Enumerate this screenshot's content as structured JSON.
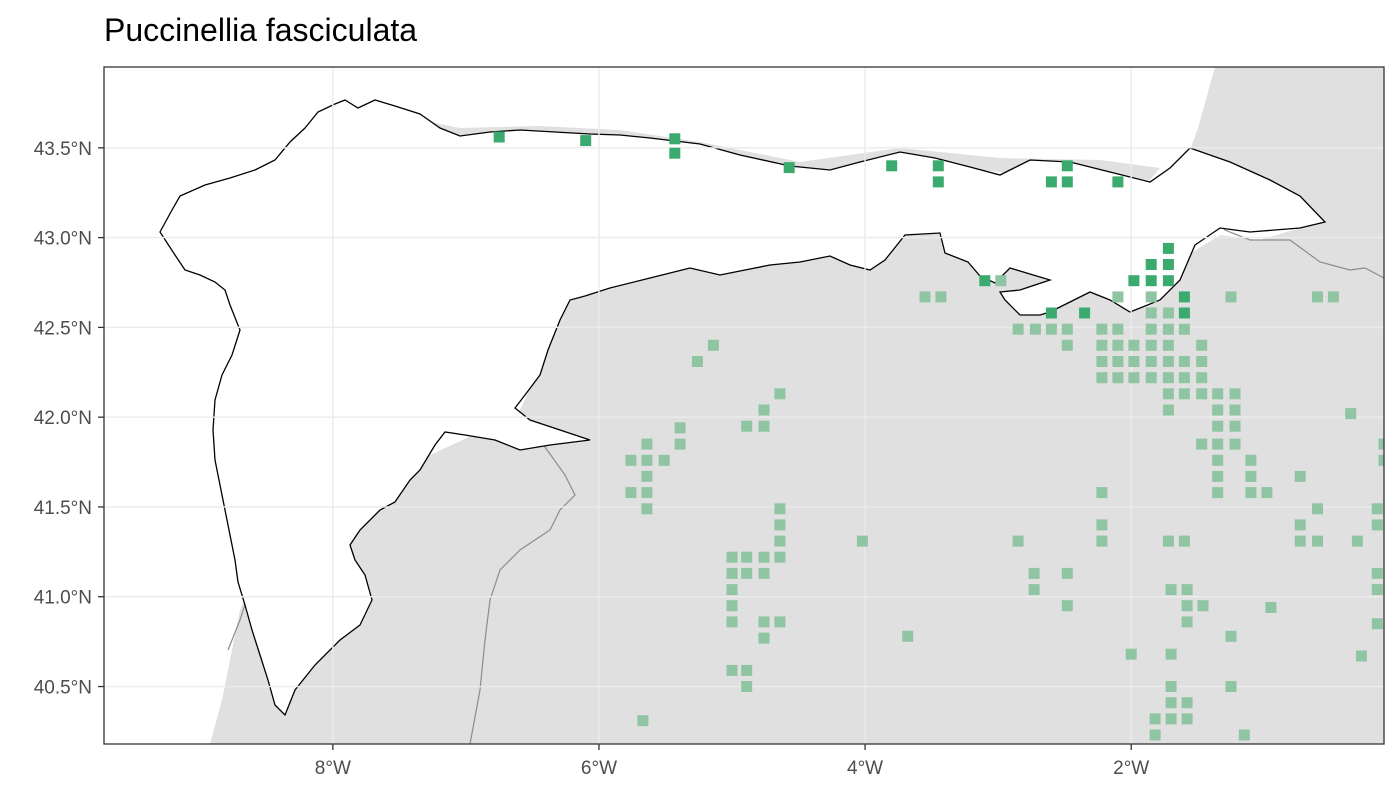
{
  "map": {
    "title": "Puccinellia fasciculata",
    "x_ticks": [
      {
        "value": -8,
        "label": "8°W"
      },
      {
        "value": -6,
        "label": "6°W"
      },
      {
        "value": -4,
        "label": "4°W"
      },
      {
        "value": -2,
        "label": "2°W"
      }
    ],
    "y_ticks": [
      {
        "value": 43.5,
        "label": "43.5°N"
      },
      {
        "value": 43.0,
        "label": "43.0°N"
      },
      {
        "value": 42.5,
        "label": "42.5°N"
      },
      {
        "value": 42.0,
        "label": "42.0°N"
      },
      {
        "value": 41.5,
        "label": "41.5°N"
      },
      {
        "value": 41.0,
        "label": "41.0°N"
      },
      {
        "value": 40.5,
        "label": "40.5°N"
      }
    ],
    "lon_range": [
      -9.72,
      -0.1
    ],
    "lat_range": [
      40.18,
      43.95
    ],
    "grid": true,
    "colors": {
      "study_area_fill": "#ffffff",
      "land_fill": "#e0e0e0",
      "grid": "#ebebeb",
      "border": "#333333",
      "record_inside": "#3aaa6e",
      "record_outside": "#8fc5a2"
    }
  },
  "chart_data": {
    "type": "scatter",
    "title": "Puccinellia fasciculata",
    "xlabel": "",
    "ylabel": "",
    "xlim": [
      -9.72,
      -0.1
    ],
    "ylim": [
      40.18,
      43.95
    ],
    "series": [
      {
        "points": [
          [
            -6.75,
            43.56
          ],
          [
            -6.1,
            43.54
          ],
          [
            -5.43,
            43.55
          ],
          [
            -5.43,
            43.47
          ],
          [
            -4.57,
            43.39
          ],
          [
            -3.8,
            43.4
          ],
          [
            -3.45,
            43.4
          ],
          [
            -3.45,
            43.31
          ],
          [
            -2.6,
            43.31
          ],
          [
            -2.48,
            43.4
          ],
          [
            -2.48,
            43.31
          ],
          [
            -2.1,
            43.31
          ],
          [
            -1.72,
            42.94
          ],
          [
            -1.72,
            42.85
          ],
          [
            -1.72,
            42.76
          ],
          [
            -1.85,
            42.85
          ],
          [
            -1.98,
            42.76
          ],
          [
            -1.85,
            42.76
          ],
          [
            -1.6,
            42.67
          ],
          [
            -1.6,
            42.58
          ],
          [
            -2.6,
            42.58
          ],
          [
            -2.35,
            42.58
          ],
          [
            -3.1,
            42.76
          ]
        ]
      },
      {
        "points": [
          [
            -3.55,
            42.67
          ],
          [
            -3.43,
            42.67
          ],
          [
            -2.98,
            42.76
          ],
          [
            -2.1,
            42.67
          ],
          [
            -1.85,
            42.67
          ],
          [
            -1.25,
            42.67
          ],
          [
            -2.85,
            42.49
          ],
          [
            -2.72,
            42.49
          ],
          [
            -2.6,
            42.49
          ],
          [
            -2.48,
            42.49
          ],
          [
            -2.48,
            42.4
          ],
          [
            -2.22,
            42.49
          ],
          [
            -2.1,
            42.49
          ],
          [
            -1.85,
            42.49
          ],
          [
            -1.72,
            42.49
          ],
          [
            -1.6,
            42.49
          ],
          [
            -1.85,
            42.58
          ],
          [
            -1.72,
            42.58
          ],
          [
            -2.22,
            42.4
          ],
          [
            -2.1,
            42.4
          ],
          [
            -1.98,
            42.4
          ],
          [
            -1.85,
            42.4
          ],
          [
            -1.72,
            42.4
          ],
          [
            -1.47,
            42.4
          ],
          [
            -2.22,
            42.31
          ],
          [
            -2.1,
            42.31
          ],
          [
            -1.98,
            42.31
          ],
          [
            -1.85,
            42.31
          ],
          [
            -1.72,
            42.31
          ],
          [
            -1.6,
            42.31
          ],
          [
            -1.47,
            42.31
          ],
          [
            -2.22,
            42.22
          ],
          [
            -2.1,
            42.22
          ],
          [
            -1.98,
            42.22
          ],
          [
            -1.85,
            42.22
          ],
          [
            -1.72,
            42.22
          ],
          [
            -1.6,
            42.22
          ],
          [
            -1.47,
            42.22
          ],
          [
            -1.72,
            42.13
          ],
          [
            -1.6,
            42.13
          ],
          [
            -1.47,
            42.13
          ],
          [
            -1.35,
            42.13
          ],
          [
            -1.22,
            42.13
          ],
          [
            -1.72,
            42.04
          ],
          [
            -1.35,
            42.04
          ],
          [
            -1.22,
            42.04
          ],
          [
            -1.35,
            41.95
          ],
          [
            -1.22,
            41.95
          ],
          [
            -1.47,
            41.85
          ],
          [
            -1.35,
            41.85
          ],
          [
            -1.22,
            41.85
          ],
          [
            -1.35,
            41.76
          ],
          [
            -1.35,
            41.67
          ],
          [
            -1.35,
            41.58
          ],
          [
            -1.1,
            41.76
          ],
          [
            -1.1,
            41.67
          ],
          [
            -1.1,
            41.58
          ],
          [
            -0.98,
            41.58
          ],
          [
            -0.6,
            42.67
          ],
          [
            -0.48,
            42.67
          ],
          [
            -0.35,
            42.02
          ],
          [
            -0.73,
            41.67
          ],
          [
            -0.6,
            41.49
          ],
          [
            -0.73,
            41.4
          ],
          [
            -0.73,
            41.31
          ],
          [
            -0.6,
            41.31
          ],
          [
            -0.3,
            41.31
          ],
          [
            -0.15,
            41.49
          ],
          [
            -0.15,
            41.4
          ],
          [
            -0.15,
            41.13
          ],
          [
            -0.15,
            41.04
          ],
          [
            -0.15,
            40.85
          ],
          [
            -0.27,
            40.67
          ],
          [
            -0.1,
            41.85
          ],
          [
            -0.1,
            41.76
          ],
          [
            -0.05,
            40.95
          ],
          [
            -5.26,
            42.31
          ],
          [
            -5.14,
            42.4
          ],
          [
            -5.39,
            41.94
          ],
          [
            -5.39,
            41.85
          ],
          [
            -5.51,
            41.76
          ],
          [
            -5.64,
            41.85
          ],
          [
            -5.64,
            41.76
          ],
          [
            -5.76,
            41.76
          ],
          [
            -5.64,
            41.67
          ],
          [
            -5.64,
            41.58
          ],
          [
            -5.76,
            41.58
          ],
          [
            -5.64,
            41.49
          ],
          [
            -4.64,
            42.13
          ],
          [
            -4.76,
            42.04
          ],
          [
            -4.89,
            41.95
          ],
          [
            -4.76,
            41.95
          ],
          [
            -4.64,
            41.49
          ],
          [
            -4.64,
            41.4
          ],
          [
            -4.64,
            41.31
          ],
          [
            -4.64,
            41.22
          ],
          [
            -5.0,
            41.22
          ],
          [
            -4.89,
            41.22
          ],
          [
            -4.76,
            41.22
          ],
          [
            -5.0,
            41.13
          ],
          [
            -4.89,
            41.13
          ],
          [
            -4.76,
            41.13
          ],
          [
            -5.0,
            41.04
          ],
          [
            -5.0,
            40.95
          ],
          [
            -5.0,
            40.86
          ],
          [
            -4.76,
            40.86
          ],
          [
            -4.64,
            40.86
          ],
          [
            -4.76,
            40.77
          ],
          [
            -5.0,
            40.59
          ],
          [
            -4.89,
            40.59
          ],
          [
            -4.89,
            40.5
          ],
          [
            -5.67,
            40.31
          ],
          [
            -4.02,
            41.31
          ],
          [
            -3.68,
            40.78
          ],
          [
            -2.85,
            41.31
          ],
          [
            -2.73,
            41.13
          ],
          [
            -2.73,
            41.04
          ],
          [
            -2.48,
            41.13
          ],
          [
            -2.48,
            40.95
          ],
          [
            -2.22,
            41.58
          ],
          [
            -2.22,
            41.4
          ],
          [
            -2.22,
            41.31
          ],
          [
            -2.0,
            40.68
          ],
          [
            -1.72,
            41.31
          ],
          [
            -1.6,
            41.31
          ],
          [
            -1.7,
            41.04
          ],
          [
            -1.58,
            41.04
          ],
          [
            -1.58,
            40.95
          ],
          [
            -1.46,
            40.95
          ],
          [
            -1.58,
            40.86
          ],
          [
            -1.25,
            40.78
          ],
          [
            -0.95,
            40.94
          ],
          [
            -1.7,
            40.68
          ],
          [
            -1.7,
            40.5
          ],
          [
            -1.7,
            40.41
          ],
          [
            -1.58,
            40.41
          ],
          [
            -1.7,
            40.32
          ],
          [
            -1.58,
            40.32
          ],
          [
            -1.82,
            40.32
          ],
          [
            -1.82,
            40.23
          ],
          [
            -1.25,
            40.5
          ],
          [
            -1.15,
            40.23
          ]
        ]
      }
    ]
  }
}
